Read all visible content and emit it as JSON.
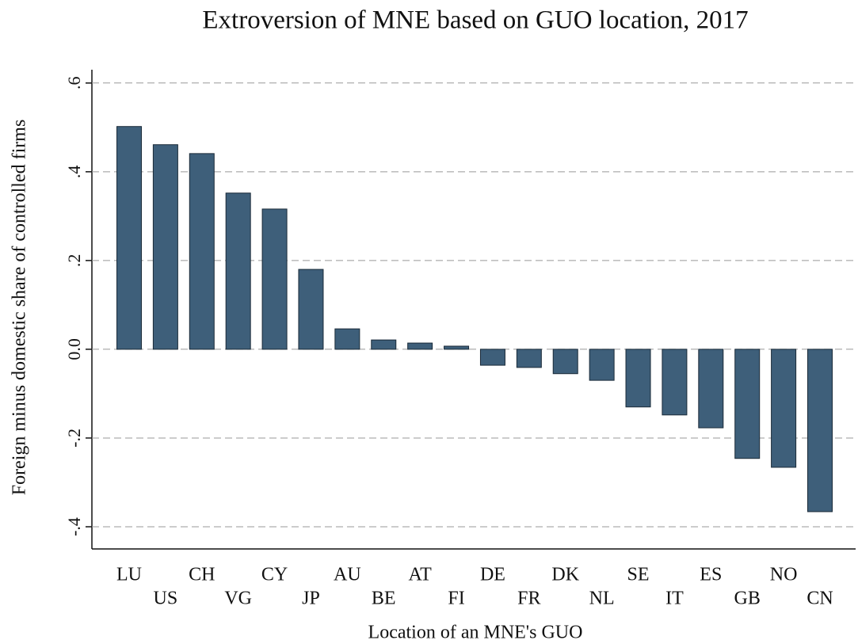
{
  "chart_data": {
    "type": "bar",
    "title": "Extroversion of MNE based on GUO location, 2017",
    "x_label": "Location of an MNE's GUO",
    "y_label": "Foreign minus domestic share of controlled firms",
    "categories": [
      "LU",
      "US",
      "CH",
      "VG",
      "CY",
      "JP",
      "AU",
      "BE",
      "AT",
      "FI",
      "DE",
      "FR",
      "DK",
      "NL",
      "SE",
      "IT",
      "ES",
      "GB",
      "NO",
      "CN"
    ],
    "values": [
      0.502,
      0.461,
      0.441,
      0.352,
      0.316,
      0.18,
      0.046,
      0.021,
      0.014,
      0.007,
      -0.036,
      -0.041,
      -0.055,
      -0.07,
      -0.13,
      -0.148,
      -0.177,
      -0.246,
      -0.266,
      -0.366
    ],
    "color": "#3e5f7a",
    "ylim": [
      -0.45,
      0.63
    ],
    "yticks": [
      {
        "value": 0.6,
        "label": ".6"
      },
      {
        "value": 0.4,
        "label": ".4"
      },
      {
        "value": 0.2,
        "label": ".2"
      },
      {
        "value": 0,
        "label": "0.0"
      },
      {
        "value": -0.2,
        "label": "-.2"
      },
      {
        "value": -0.4,
        "label": "-.4"
      }
    ],
    "grid": true
  }
}
